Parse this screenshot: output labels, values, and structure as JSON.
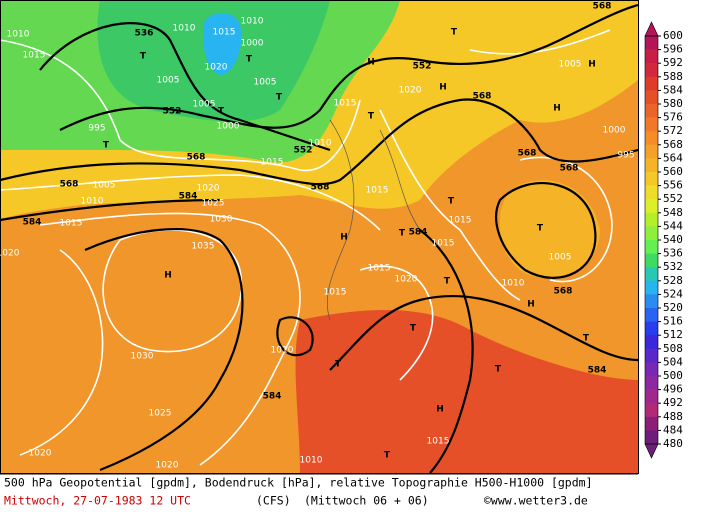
{
  "map_labels": [
    "1010",
    "1015",
    "536",
    "1010",
    "1015",
    "1010",
    "1000",
    "1020",
    "T",
    "T",
    "1005",
    "1005",
    "T",
    "552",
    "1005",
    "T",
    "1000",
    "995",
    "T",
    "552",
    "1010",
    "1015",
    "568",
    "568",
    "1005",
    "1010",
    "1020",
    "584",
    "1025",
    "584",
    "1015",
    "1030",
    "1035",
    "H",
    "1020",
    "568",
    "1015",
    "T",
    "1015",
    "H",
    "T",
    "584",
    "1015",
    "1015",
    "1020",
    "1015",
    "T",
    "T",
    "1015",
    "H",
    "552",
    "1020",
    "H",
    "568",
    "T",
    "568",
    "1005",
    "H",
    "H",
    "1000",
    "995",
    "568",
    "568",
    "T",
    "1005",
    "568",
    "1010",
    "H",
    "T",
    "T",
    "584",
    "1010",
    "1030",
    "1025",
    "1020",
    "1020",
    "T",
    "1015",
    "H",
    "T",
    "584",
    "T",
    "1010"
  ],
  "scale": {
    "ticks": [
      600,
      596,
      592,
      588,
      584,
      580,
      576,
      572,
      568,
      564,
      560,
      556,
      552,
      548,
      544,
      540,
      536,
      532,
      528,
      524,
      520,
      516,
      512,
      508,
      504,
      500,
      496,
      492,
      488,
      484,
      480
    ],
    "colors": [
      "#b4145a",
      "#c81e46",
      "#d2283c",
      "#dc3c28",
      "#e65028",
      "#eb6428",
      "#f07828",
      "#f58c28",
      "#f5a028",
      "#f5b428",
      "#f5c828",
      "#f0dc28",
      "#dcf028",
      "#b4f028",
      "#8cf03c",
      "#64f050",
      "#3cdc64",
      "#28c8b4",
      "#28b4f0",
      "#288cf0",
      "#2864f0",
      "#283cf0",
      "#3c28dc",
      "#5a28c8",
      "#7828b4",
      "#8c28a0",
      "#a0288c",
      "#b42878",
      "#8c1e78",
      "#6e1e78"
    ]
  },
  "footer": {
    "line1": "500 hPa Geopotential [gpdm], Bodendruck [hPa], relative Topographie H500-H1000 [gpdm]",
    "date": "Mittwoch, 27-07-1983  12 UTC",
    "model": "(CFS)",
    "run": "(Mittwoch 06 + 06)",
    "credit": "©www.wetter3.de"
  }
}
